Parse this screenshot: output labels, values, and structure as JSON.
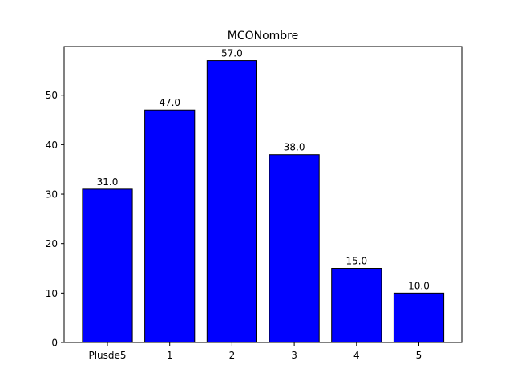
{
  "chart_data": {
    "type": "bar",
    "title": "MCONombre",
    "xlabel": "",
    "ylabel": "",
    "categories": [
      "Plusde5",
      "1",
      "2",
      "3",
      "4",
      "5"
    ],
    "values": [
      31.0,
      47.0,
      57.0,
      38.0,
      15.0,
      10.0
    ],
    "value_labels": [
      "31.0",
      "47.0",
      "57.0",
      "38.0",
      "15.0",
      "10.0"
    ],
    "ylim": [
      0,
      59.85
    ],
    "yticks": [
      0,
      10,
      20,
      30,
      40,
      50
    ],
    "ytick_labels": [
      "0",
      "10",
      "20",
      "30",
      "40",
      "50"
    ],
    "bar_color": "#0000ff",
    "edge_color": "#000000",
    "grid": false,
    "legend": "none"
  }
}
